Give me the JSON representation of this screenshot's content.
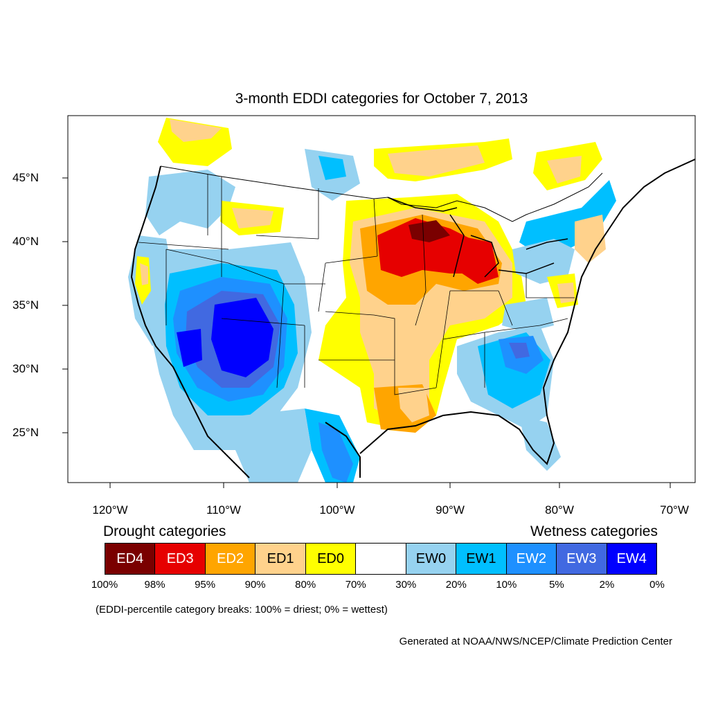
{
  "title": "3-month EDDI categories for October 7, 2013",
  "lon_labels": [
    "120°W",
    "110°W",
    "100°W",
    "90°W",
    "80°W",
    "70°W"
  ],
  "lat_labels": [
    "45°N",
    "40°N",
    "35°N",
    "30°N",
    "25°N"
  ],
  "legend": {
    "drought_heading": "Drought categories",
    "wetness_heading": "Wetness categories",
    "categories": [
      {
        "label": "ED4",
        "color": "#7a0000",
        "text_color": "#ffffff"
      },
      {
        "label": "ED3",
        "color": "#e60000",
        "text_color": "#ffffff"
      },
      {
        "label": "ED2",
        "color": "#ffa500",
        "text_color": "#ffffff"
      },
      {
        "label": "ED1",
        "color": "#ffd28c",
        "text_color": "#000000"
      },
      {
        "label": "ED0",
        "color": "#ffff00",
        "text_color": "#000000"
      },
      {
        "label": "",
        "color": "#ffffff",
        "text_color": "#000000"
      },
      {
        "label": "EW0",
        "color": "#96d2f0",
        "text_color": "#000000"
      },
      {
        "label": "EW1",
        "color": "#00bfff",
        "text_color": "#000000"
      },
      {
        "label": "EW2",
        "color": "#1e90ff",
        "text_color": "#ffffff"
      },
      {
        "label": "EW3",
        "color": "#4169e1",
        "text_color": "#ffffff"
      },
      {
        "label": "EW4",
        "color": "#0000ff",
        "text_color": "#ffffff"
      }
    ],
    "percentiles": [
      "100%",
      "98%",
      "95%",
      "90%",
      "80%",
      "70%",
      "30%",
      "20%",
      "10%",
      "5%",
      "2%",
      "0%"
    ],
    "note": "(EDDI-percentile category breaks: 100% = driest; 0% = wettest)"
  },
  "credit": "Generated at NOAA/NWS/NCEP/Climate Prediction Center"
}
